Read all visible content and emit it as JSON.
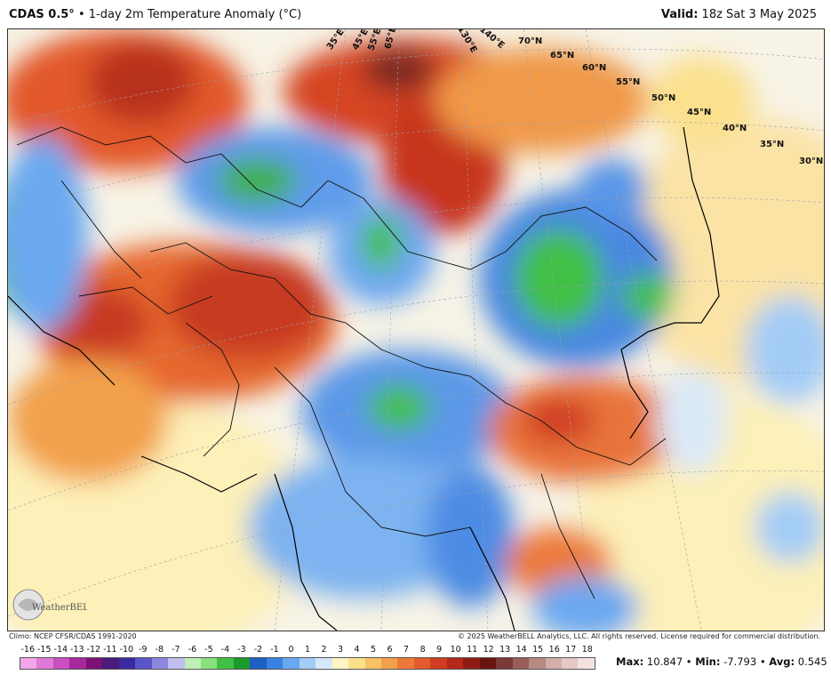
{
  "header": {
    "product": "CDAS 0.5°",
    "bullet": "•",
    "field": "1-day 2m Temperature Anomaly (°C)",
    "valid_label": "Valid:",
    "valid_time": "18z Sat 3 May 2025"
  },
  "map": {
    "latitude_labels": [
      "70°N",
      "65°N",
      "60°N",
      "55°N",
      "50°N",
      "45°N",
      "40°N",
      "35°N",
      "30°N"
    ],
    "longitude_labels": [
      "35°E",
      "45°E",
      "55°E",
      "65°E",
      "130°E",
      "140°E"
    ]
  },
  "footer": {
    "climo": "Climo: NCEP CFSR/CDAS 1991-2020",
    "copyright": "© 2025 WeatherBELL Analytics, LLC. All rights reserved. License required for commercial distribution."
  },
  "logo": {
    "text": "WeatherBELL"
  },
  "colorbar": {
    "ticks": [
      "-16",
      "-15",
      "-14",
      "-13",
      "-12",
      "-11",
      "-10",
      "-9",
      "-8",
      "-7",
      "-6",
      "-5",
      "-4",
      "-3",
      "-2",
      "-1",
      "0",
      "1",
      "2",
      "3",
      "4",
      "5",
      "6",
      "7",
      "8",
      "9",
      "10",
      "11",
      "12",
      "13",
      "14",
      "15",
      "16",
      "17",
      "18"
    ],
    "colors": [
      "#f3a6e8",
      "#e07ad8",
      "#c94fc2",
      "#a8289d",
      "#7d1178",
      "#4a1a7c",
      "#3a2aa0",
      "#5a55c8",
      "#8c86df",
      "#c2bff0",
      "#bff0b8",
      "#88e07d",
      "#42c045",
      "#1a9a2a",
      "#1f5fc4",
      "#3a82e0",
      "#6aa8f0",
      "#a3ccf7",
      "#d6e9fb",
      "#fff6c4",
      "#fbe08e",
      "#f7c267",
      "#f2a04c",
      "#ec7a3a",
      "#e35a2c",
      "#d03c22",
      "#b5281a",
      "#8e1c14",
      "#6a1410",
      "#7a3a36",
      "#9a5e58",
      "#b88882",
      "#d4aeaa",
      "#e6c9c6",
      "#f3e2e0"
    ]
  },
  "stats": {
    "max_label": "Max:",
    "max_value": "10.847",
    "min_label": "Min:",
    "min_value": "-7.793",
    "avg_label": "Avg:",
    "avg_value": "0.545",
    "sep": "•"
  }
}
